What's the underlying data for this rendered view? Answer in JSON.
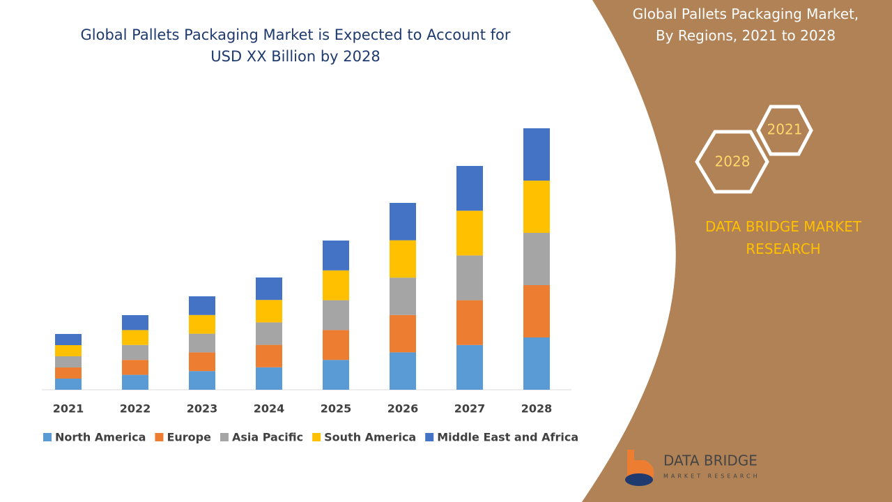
{
  "chart_data": {
    "type": "stacked-bar",
    "title": "Global Pallets Packaging Market is Expected to Account for USD XX Billion by 2028",
    "categories": [
      "2021",
      "2022",
      "2023",
      "2024",
      "2025",
      "2026",
      "2027",
      "2028"
    ],
    "series": [
      {
        "name": "North America",
        "color": "#5b9bd5",
        "values": [
          16,
          21.4,
          26.8,
          32.2,
          42.8,
          53.6,
          64.2,
          75
        ]
      },
      {
        "name": "Europe",
        "color": "#ed7d31",
        "values": [
          16,
          21.4,
          26.8,
          32.2,
          42.8,
          53.6,
          64.2,
          75
        ]
      },
      {
        "name": "Asia Pacific",
        "color": "#a5a5a5",
        "values": [
          16,
          21.4,
          26.8,
          32.2,
          42.8,
          53.6,
          64.2,
          75
        ]
      },
      {
        "name": "South America",
        "color": "#ffc000",
        "values": [
          16,
          21.4,
          26.8,
          32.2,
          42.8,
          53.6,
          64.2,
          75
        ]
      },
      {
        "name": "Middle East and Africa",
        "color": "#4472c4",
        "values": [
          16,
          21.4,
          26.8,
          32.2,
          42.8,
          53.6,
          64.2,
          75
        ]
      }
    ],
    "legend": "bottom"
  },
  "panel": {
    "title": "Global Pallets Packaging Market, By Regions, 2021 to 2028",
    "hex_start": "2021",
    "hex_end": "2028",
    "brand": "DATA BRIDGE MARKET RESEARCH",
    "logo_name": "DATA BRIDGE",
    "logo_tagline": "MARKET RESEARCH"
  }
}
